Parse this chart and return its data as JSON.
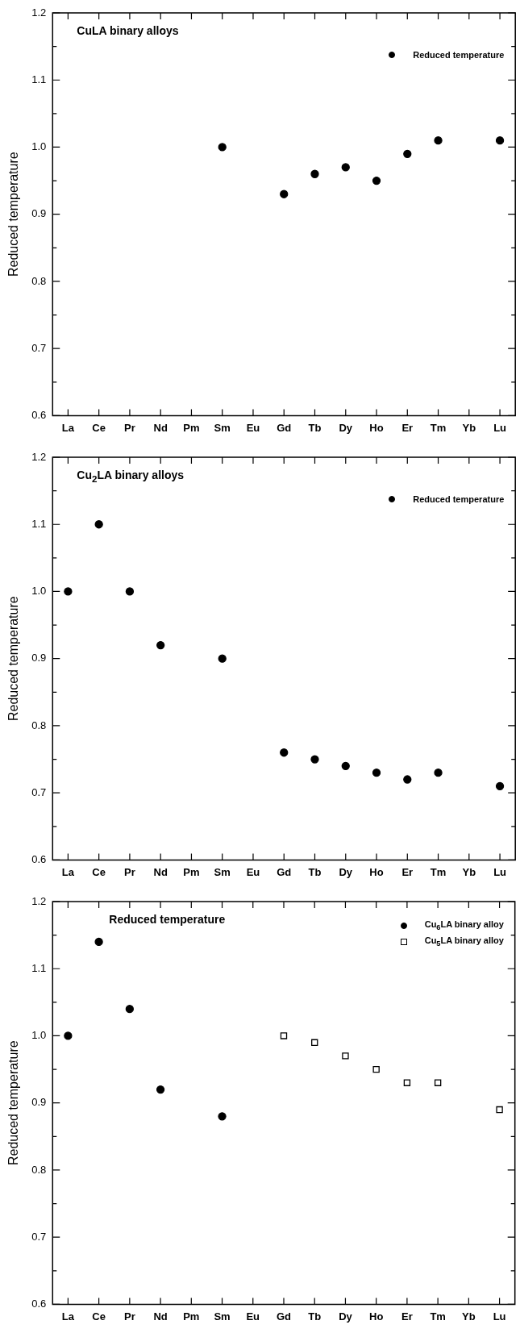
{
  "chart_data": [
    {
      "type": "scatter",
      "title": "CuLA binary alloys",
      "ylabel": "Reduced temperature",
      "legend": "top right",
      "marker": "circle",
      "categories": [
        "La",
        "Ce",
        "Pr",
        "Nd",
        "Pm",
        "Sm",
        "Eu",
        "Gd",
        "Tb",
        "Dy",
        "Ho",
        "Er",
        "Tm",
        "Yb",
        "Lu"
      ],
      "series": [
        {
          "name": "Reduced temperature",
          "color": "#000000",
          "values": [
            null,
            null,
            null,
            null,
            null,
            1.0,
            null,
            0.93,
            0.96,
            0.97,
            0.95,
            0.99,
            1.01,
            null,
            1.01
          ]
        }
      ],
      "ylim": [
        0.6,
        1.2
      ],
      "yticks": [
        {
          "value": 0.6,
          "label": "0.6"
        },
        {
          "value": 0.65,
          "label": null
        },
        {
          "value": 0.7,
          "label": "0.7"
        },
        {
          "value": 0.75,
          "label": null
        },
        {
          "value": 0.8,
          "label": "0.8"
        },
        {
          "value": 0.85,
          "label": null
        },
        {
          "value": 0.9,
          "label": "0.9"
        },
        {
          "value": 0.95,
          "label": null
        },
        {
          "value": 1.0,
          "label": "1.0"
        },
        {
          "value": 1.05,
          "label": null
        },
        {
          "value": 1.1,
          "label": "1.1"
        },
        {
          "value": 1.15,
          "label": null
        },
        {
          "value": 1.2,
          "label": "1.2"
        }
      ]
    },
    {
      "type": "scatter",
      "title": "Cu$_{2}$LA binary alloys",
      "ylabel": "Reduced temperature",
      "legend": "top right",
      "marker": "circle",
      "categories": [
        "La",
        "Ce",
        "Pr",
        "Nd",
        "Pm",
        "Sm",
        "Eu",
        "Gd",
        "Tb",
        "Dy",
        "Ho",
        "Er",
        "Tm",
        "Yb",
        "Lu"
      ],
      "series": [
        {
          "name": "Reduced temperature",
          "color": "#000000",
          "values": [
            1.0,
            1.1,
            1.0,
            0.92,
            null,
            0.9,
            null,
            0.76,
            0.75,
            0.74,
            0.73,
            0.72,
            0.73,
            null,
            0.71
          ]
        }
      ],
      "ylim": [
        0.6,
        1.2
      ],
      "yticks": [
        {
          "value": 0.6,
          "label": "0.6"
        },
        {
          "value": 0.65,
          "label": null
        },
        {
          "value": 0.7,
          "label": "0.7"
        },
        {
          "value": 0.75,
          "label": null
        },
        {
          "value": 0.8,
          "label": "0.8"
        },
        {
          "value": 0.85,
          "label": null
        },
        {
          "value": 0.9,
          "label": "0.9"
        },
        {
          "value": 0.95,
          "label": null
        },
        {
          "value": 1.0,
          "label": "1.0"
        },
        {
          "value": 1.05,
          "label": null
        },
        {
          "value": 1.1,
          "label": "1.1"
        },
        {
          "value": 1.15,
          "label": null
        },
        {
          "value": 1.2,
          "label": "1.2"
        }
      ]
    },
    {
      "type": "scatter",
      "title": "Reduced temperature",
      "ylabel": "Reduced temperature",
      "legend": "top right",
      "categories": [
        "La",
        "Ce",
        "Pr",
        "Nd",
        "Pm",
        "Sm",
        "Eu",
        "Gd",
        "Tb",
        "Dy",
        "Ho",
        "Er",
        "Tm",
        "Yb",
        "Lu"
      ],
      "series": [
        {
          "name": "Cu$_{6}$LA binary alloy",
          "color": "#000000",
          "marker": "circle",
          "values": [
            1.0,
            1.14,
            1.04,
            0.92,
            null,
            0.88,
            null,
            null,
            null,
            null,
            null,
            null,
            null,
            null,
            null
          ]
        },
        {
          "name": "Cu$_{5}$LA binary alloy",
          "color": "#000000",
          "marker": "square",
          "values": [
            null,
            null,
            null,
            null,
            null,
            null,
            null,
            1.0,
            0.99,
            0.97,
            0.95,
            0.93,
            0.93,
            null,
            0.89
          ]
        }
      ],
      "ylim": [
        0.6,
        1.2
      ],
      "yticks": [
        {
          "value": 0.6,
          "label": "0.6"
        },
        {
          "value": 0.65,
          "label": null
        },
        {
          "value": 0.7,
          "label": "0.7"
        },
        {
          "value": 0.75,
          "label": null
        },
        {
          "value": 0.8,
          "label": "0.8"
        },
        {
          "value": 0.85,
          "label": null
        },
        {
          "value": 0.9,
          "label": "0.9"
        },
        {
          "value": 0.95,
          "label": null
        },
        {
          "value": 1.0,
          "label": "1.0"
        },
        {
          "value": 1.05,
          "label": null
        },
        {
          "value": 1.1,
          "label": "1.1"
        },
        {
          "value": 1.15,
          "label": null
        },
        {
          "value": 1.2,
          "label": "1.2"
        }
      ]
    }
  ]
}
